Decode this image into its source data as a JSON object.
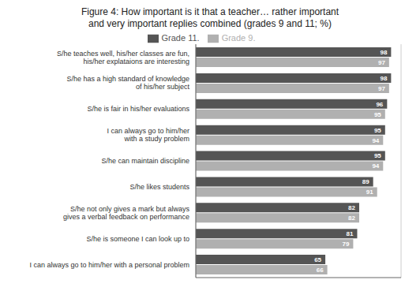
{
  "chart_data": {
    "type": "bar",
    "orientation": "horizontal",
    "title": "Figure 4: How important is it that a teacher… rather important\nand very important replies combined (grades 9 and 11; %)",
    "categories": [
      "S/he teaches well, his/her classes are fun,\nhis/her explataions are interesting",
      "S/he has a high standard of knowledge\nof his/her subject",
      "S/he is fair in his/her evaluations",
      "I can always go to him/her\nwith a study problem",
      "S/he can maintain discipline",
      "S/he likes students",
      "S/he not only gives a mark but always\ngives a verbal feedback on performance",
      "S/he is someone I can look up to",
      "I can always go to him/her with a personal problem"
    ],
    "series": [
      {
        "name": "Grade 11.",
        "color": "#555555",
        "values": [
          98,
          98,
          96,
          95,
          95,
          89,
          82,
          81,
          65
        ]
      },
      {
        "name": "Grade 9.",
        "color": "#b0b0b0",
        "values": [
          97,
          97,
          95,
          94,
          94,
          91,
          82,
          79,
          66
        ]
      }
    ],
    "xlim": [
      0,
      103
    ],
    "xticks": [
      0,
      10,
      20,
      30,
      40,
      50,
      60,
      70,
      80,
      90,
      100
    ],
    "grid": true,
    "legend": "top",
    "data_labels": true,
    "tick_labels": "y"
  }
}
